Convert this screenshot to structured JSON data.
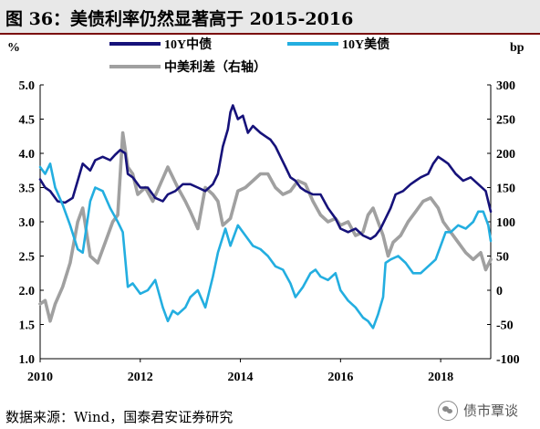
{
  "figure": {
    "title": "图 36：美债利率仍然显著高于 2015-2016",
    "source": "数据来源：Wind，国泰君安证券研究",
    "watermark": "债市覃谈",
    "watermark_icon": "wechat-icon"
  },
  "colors": {
    "cn": "#16127a",
    "us": "#23aee0",
    "spread": "#a0a0a0",
    "title_bg": "#e8e8e8",
    "rule": "#7a0a0a"
  },
  "chart_data": {
    "type": "line",
    "left_unit": "%",
    "right_unit": "bp",
    "left_ylim": [
      1.0,
      5.0
    ],
    "right_ylim": [
      -100,
      300
    ],
    "left_ticks": [
      "5.0",
      "4.5",
      "4.0",
      "3.5",
      "3.0",
      "2.5",
      "2.0",
      "1.5",
      "1.0"
    ],
    "right_ticks": [
      "300",
      "250",
      "200",
      "150",
      "100",
      "50",
      "0",
      "-50",
      "-100"
    ],
    "x_ticks": [
      "2010",
      "2012",
      "2014",
      "2016",
      "2018"
    ],
    "x_tick_values": [
      2010,
      2012,
      2014,
      2016,
      2018
    ],
    "xlim": [
      2010.0,
      2019.0
    ],
    "legend": {
      "placement": "top",
      "entries": [
        "10Y中债",
        "10Y美债",
        "中美利差（右轴）"
      ]
    },
    "series": [
      {
        "name": "10Y中债",
        "axis": "left",
        "x": [
          2010.0,
          2010.1,
          2010.2,
          2010.35,
          2010.5,
          2010.65,
          2010.75,
          2010.85,
          2011.0,
          2011.1,
          2011.25,
          2011.4,
          2011.5,
          2011.6,
          2011.7,
          2011.75,
          2011.85,
          2012.0,
          2012.15,
          2012.3,
          2012.45,
          2012.55,
          2012.7,
          2012.85,
          2013.0,
          2013.15,
          2013.3,
          2013.45,
          2013.55,
          2013.65,
          2013.75,
          2013.8,
          2013.85,
          2013.95,
          2014.05,
          2014.15,
          2014.25,
          2014.4,
          2014.5,
          2014.6,
          2014.7,
          2014.8,
          2014.9,
          2015.0,
          2015.1,
          2015.2,
          2015.3,
          2015.45,
          2015.6,
          2015.75,
          2015.9,
          2016.0,
          2016.15,
          2016.3,
          2016.45,
          2016.6,
          2016.7,
          2016.8,
          2016.9,
          2017.0,
          2017.1,
          2017.25,
          2017.4,
          2017.5,
          2017.6,
          2017.75,
          2017.85,
          2017.95,
          2018.05,
          2018.15,
          2018.3,
          2018.45,
          2018.6,
          2018.75,
          2018.9,
          2019.0
        ],
        "values": [
          3.62,
          3.5,
          3.45,
          3.3,
          3.28,
          3.35,
          3.6,
          3.85,
          3.75,
          3.9,
          3.95,
          3.9,
          3.98,
          4.05,
          4.0,
          3.7,
          3.65,
          3.5,
          3.5,
          3.35,
          3.3,
          3.4,
          3.45,
          3.55,
          3.55,
          3.5,
          3.45,
          3.55,
          3.7,
          4.1,
          4.35,
          4.6,
          4.7,
          4.5,
          4.55,
          4.3,
          4.4,
          4.3,
          4.25,
          4.2,
          4.1,
          3.95,
          3.8,
          3.65,
          3.6,
          3.5,
          3.45,
          3.4,
          3.4,
          3.2,
          3.05,
          2.9,
          2.85,
          2.9,
          2.8,
          2.75,
          2.8,
          2.9,
          3.05,
          3.2,
          3.4,
          3.45,
          3.55,
          3.6,
          3.65,
          3.7,
          3.85,
          3.95,
          3.9,
          3.85,
          3.7,
          3.6,
          3.65,
          3.55,
          3.45,
          3.15
        ]
      },
      {
        "name": "10Y美债",
        "axis": "left",
        "x": [
          2010.0,
          2010.1,
          2010.2,
          2010.3,
          2010.45,
          2010.6,
          2010.75,
          2010.85,
          2011.0,
          2011.1,
          2011.25,
          2011.4,
          2011.55,
          2011.65,
          2011.75,
          2011.85,
          2012.0,
          2012.15,
          2012.3,
          2012.45,
          2012.55,
          2012.65,
          2012.75,
          2012.9,
          2013.0,
          2013.15,
          2013.3,
          2013.45,
          2013.55,
          2013.7,
          2013.8,
          2013.95,
          2014.1,
          2014.25,
          2014.4,
          2014.55,
          2014.7,
          2014.85,
          2015.0,
          2015.1,
          2015.25,
          2015.4,
          2015.5,
          2015.6,
          2015.75,
          2015.9,
          2016.0,
          2016.15,
          2016.3,
          2016.45,
          2016.55,
          2016.65,
          2016.75,
          2016.85,
          2016.9,
          2017.0,
          2017.15,
          2017.3,
          2017.45,
          2017.6,
          2017.75,
          2017.9,
          2018.0,
          2018.1,
          2018.2,
          2018.35,
          2018.5,
          2018.65,
          2018.75,
          2018.85,
          2018.95,
          2019.0
        ],
        "values": [
          3.8,
          3.7,
          3.85,
          3.5,
          3.25,
          2.95,
          2.6,
          2.55,
          3.3,
          3.5,
          3.45,
          3.2,
          3.0,
          2.85,
          2.05,
          2.1,
          1.95,
          2.0,
          2.15,
          1.75,
          1.55,
          1.7,
          1.65,
          1.75,
          1.9,
          2.0,
          1.75,
          2.2,
          2.55,
          2.9,
          2.65,
          2.95,
          2.8,
          2.65,
          2.6,
          2.5,
          2.35,
          2.3,
          2.1,
          1.9,
          2.05,
          2.25,
          2.3,
          2.2,
          2.15,
          2.25,
          2.0,
          1.85,
          1.75,
          1.6,
          1.55,
          1.45,
          1.65,
          1.9,
          2.4,
          2.45,
          2.5,
          2.4,
          2.25,
          2.25,
          2.35,
          2.45,
          2.65,
          2.85,
          2.85,
          2.95,
          2.9,
          3.0,
          3.15,
          3.15,
          2.95,
          2.72
        ]
      },
      {
        "name": "中美利差（右轴）",
        "axis": "right",
        "x": [
          2010.0,
          2010.1,
          2010.2,
          2010.3,
          2010.45,
          2010.6,
          2010.75,
          2010.85,
          2011.0,
          2011.15,
          2011.3,
          2011.45,
          2011.55,
          2011.65,
          2011.75,
          2011.85,
          2011.95,
          2012.1,
          2012.25,
          2012.4,
          2012.55,
          2012.65,
          2012.75,
          2012.9,
          2013.0,
          2013.15,
          2013.3,
          2013.45,
          2013.55,
          2013.65,
          2013.8,
          2013.95,
          2014.1,
          2014.25,
          2014.4,
          2014.55,
          2014.7,
          2014.85,
          2015.0,
          2015.15,
          2015.3,
          2015.45,
          2015.6,
          2015.75,
          2015.9,
          2016.0,
          2016.15,
          2016.3,
          2016.45,
          2016.55,
          2016.65,
          2016.75,
          2016.85,
          2016.95,
          2017.05,
          2017.2,
          2017.35,
          2017.5,
          2017.65,
          2017.8,
          2017.95,
          2018.05,
          2018.2,
          2018.35,
          2018.5,
          2018.65,
          2018.8,
          2018.9,
          2019.0
        ],
        "values": [
          -20,
          -15,
          -45,
          -20,
          5,
          40,
          100,
          120,
          50,
          40,
          70,
          100,
          110,
          230,
          180,
          170,
          140,
          150,
          130,
          155,
          180,
          165,
          150,
          130,
          115,
          90,
          150,
          140,
          130,
          95,
          105,
          145,
          150,
          160,
          170,
          170,
          150,
          140,
          145,
          160,
          155,
          130,
          110,
          100,
          105,
          95,
          100,
          80,
          85,
          110,
          120,
          100,
          80,
          50,
          70,
          80,
          100,
          115,
          130,
          135,
          120,
          100,
          85,
          70,
          55,
          45,
          55,
          30,
          45
        ]
      }
    ]
  }
}
